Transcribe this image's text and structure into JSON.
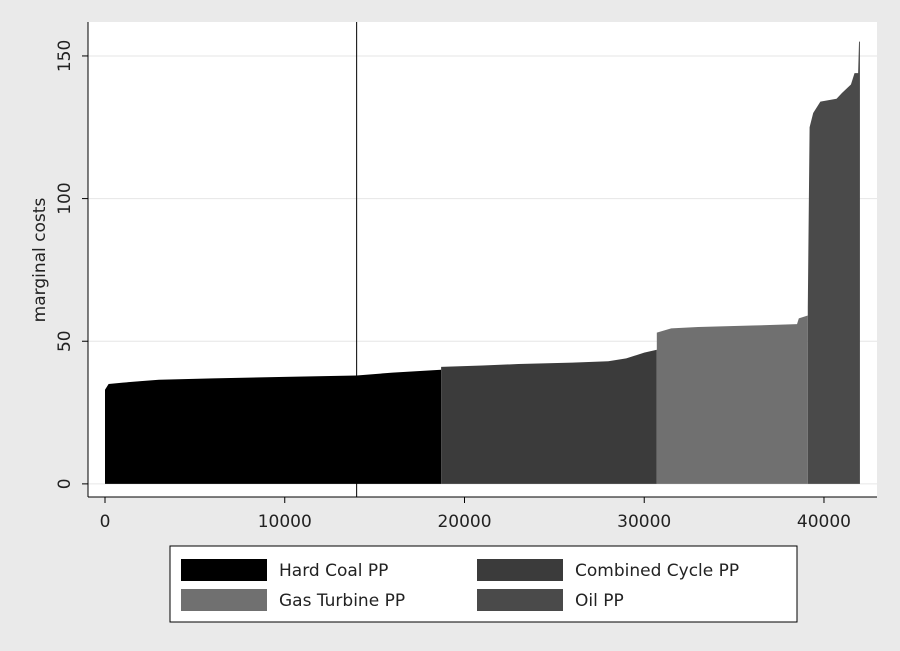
{
  "chart_data": {
    "type": "area",
    "ylabel": "marginal costs",
    "xlim": [
      -946,
      42950
    ],
    "ylim": [
      -4.6,
      161.9
    ],
    "xticks": [
      0,
      10000,
      20000,
      30000,
      40000
    ],
    "yticks": [
      0,
      50,
      100,
      150
    ],
    "grid": true,
    "vline": 14000,
    "legend": "bottom",
    "series": [
      {
        "name": "Hard Coal PP",
        "color": "#000000",
        "x": [
          0,
          200,
          1000,
          2000,
          3000,
          6000,
          10000,
          14000,
          16000,
          18700
        ],
        "values": [
          33,
          35,
          35.5,
          36,
          36.5,
          37,
          37.5,
          38,
          39,
          40
        ]
      },
      {
        "name": "Combined Cycle PP",
        "color": "#3b3b3b",
        "x": [
          18700,
          21000,
          23000,
          26000,
          28000,
          29000,
          30000,
          30700
        ],
        "values": [
          41,
          41.5,
          42,
          42.5,
          43,
          44,
          46,
          47
        ]
      },
      {
        "name": "Gas Turbine PP",
        "color": "#707070",
        "x": [
          30700,
          31500,
          33000,
          36000,
          38500,
          38600,
          39100
        ],
        "values": [
          53,
          54.5,
          55,
          55.5,
          56,
          58,
          59
        ]
      },
      {
        "name": "Oil PP",
        "color": "#4a4a4a",
        "x": [
          39100,
          39200,
          39400,
          39800,
          40700,
          41000,
          41500,
          41700,
          41900,
          41950,
          42000
        ],
        "values": [
          62,
          125,
          130,
          134,
          135,
          137,
          140,
          144,
          144,
          155,
          155
        ]
      }
    ]
  }
}
